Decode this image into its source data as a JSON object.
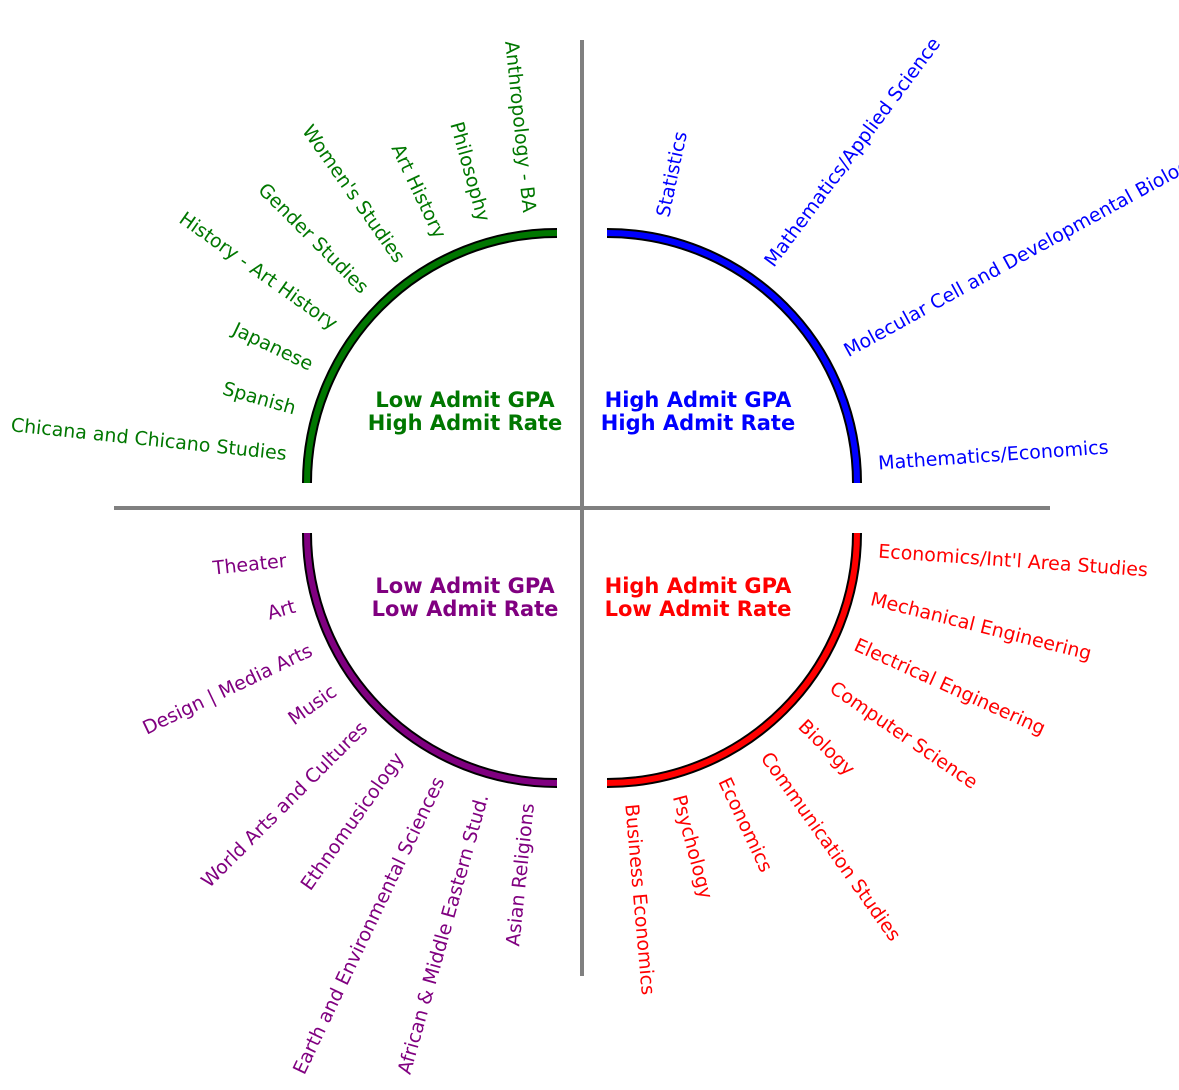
{
  "colors": {
    "high_gpa_high_rate": "#0000ff",
    "low_gpa_high_rate": "#007700",
    "low_gpa_low_rate": "#800080",
    "high_gpa_low_rate": "#ff0000",
    "axis": "#808080"
  },
  "quadrants": [
    {
      "id": "low-gpa-high-rate",
      "color_key": "low_gpa_high_rate",
      "title_line1": "Low Admit GPA",
      "title_line2": "High Admit Rate",
      "majors": [
        "Chicana and Chicano Studies",
        "Spanish",
        "Japanese",
        "History - Art History",
        "Gender Studies",
        "Women's Studies",
        "Art History",
        "Philosophy",
        "Anthropology - BA"
      ]
    },
    {
      "id": "high-gpa-high-rate",
      "color_key": "high_gpa_high_rate",
      "title_line1": "High Admit GPA",
      "title_line2": "High Admit Rate",
      "majors": [
        "Statistics",
        "Mathematics/Applied Science",
        "Molecular Cell and Developmental Biology",
        "Mathematics/Economics"
      ]
    },
    {
      "id": "low-gpa-low-rate",
      "color_key": "low_gpa_low_rate",
      "title_line1": "Low Admit GPA",
      "title_line2": "Low Admit Rate",
      "majors": [
        "Theater",
        "Art",
        "Design | Media Arts",
        "Music",
        "World Arts and Cultures",
        "Ethnomusicology",
        "Earth and Environmental Sciences",
        "African & Middle Eastern Stud.",
        "Asian Religions"
      ]
    },
    {
      "id": "high-gpa-low-rate",
      "color_key": "high_gpa_low_rate",
      "title_line1": "High Admit GPA",
      "title_line2": "Low Admit Rate",
      "majors": [
        "Economics/Int'l Area Studies",
        "Mechanical Engineering",
        "Electrical Engineering",
        "Computer Science",
        "Biology",
        "Communication Studies",
        "Economics",
        "Psychology",
        "Business Economics"
      ]
    }
  ]
}
